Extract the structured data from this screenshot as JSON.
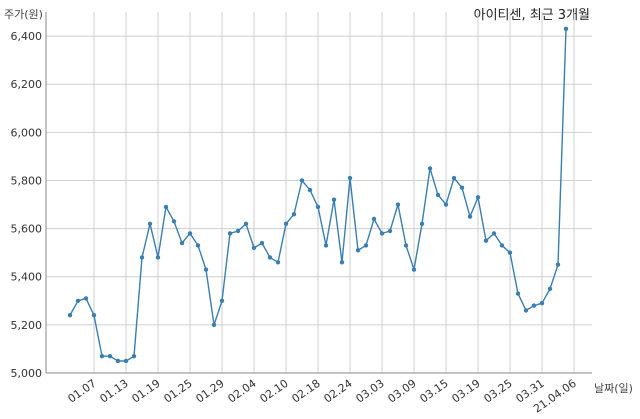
{
  "chart_data": {
    "type": "line",
    "title": "아이티센, 최근 3개월",
    "ylabel": "주가(원)",
    "xlabel": "날짜(일)",
    "ylim": [
      5000,
      6500
    ],
    "yticks": [
      5000,
      5200,
      5400,
      5600,
      5800,
      6000,
      6200,
      6400
    ],
    "ytick_labels": [
      "5,000",
      "5,200",
      "5,400",
      "5,600",
      "5,800",
      "6,000",
      "6,200",
      "6,400"
    ],
    "xtick_labels": [
      "01.07",
      "01.13",
      "01.19",
      "01.25",
      "01.29",
      "02.04",
      "02.10",
      "02.18",
      "02.24",
      "03.03",
      "03.09",
      "03.15",
      "03.19",
      "03.25",
      "03.31",
      "21.04.06"
    ],
    "xtick_index": [
      3,
      7,
      11,
      15,
      19,
      23,
      27,
      31,
      35,
      39,
      43,
      47,
      51,
      55,
      59,
      63
    ],
    "grid": true,
    "line_color": "#3a7fb0",
    "series": [
      {
        "values": [
          5240,
          5300,
          5310,
          5240,
          5070,
          5070,
          5050,
          5050,
          5070,
          5480,
          5620,
          5480,
          5690,
          5630,
          5540,
          5580,
          5530,
          5430,
          5200,
          5300,
          5580,
          5590,
          5620,
          5520,
          5540,
          5480,
          5460,
          5620,
          5660,
          5800,
          5760,
          5690,
          5530,
          5720,
          5460,
          5810,
          5510,
          5530,
          5640,
          5580,
          5590,
          5700,
          5530,
          5430,
          5620,
          5850,
          5740,
          5700,
          5810,
          5770,
          5650,
          5730,
          5550,
          5580,
          5530,
          5500,
          5330,
          5260,
          5280,
          5290,
          5350,
          5450,
          6430
        ]
      }
    ]
  }
}
